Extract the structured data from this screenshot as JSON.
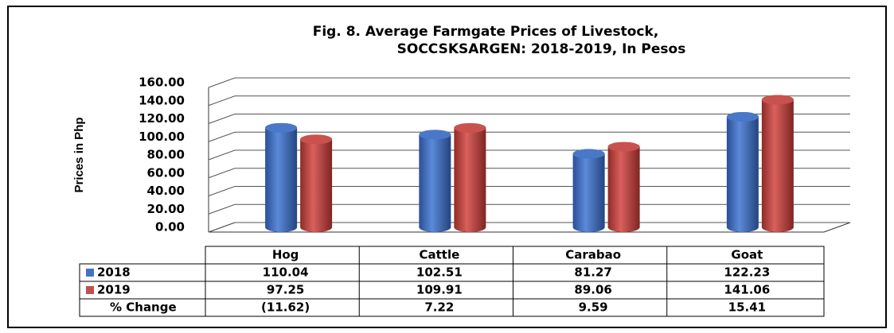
{
  "chart_data": {
    "type": "bar3d",
    "title": [
      "Fig. 8. Average Farmgate Prices of Livestock,",
      "SOCCSKSARGEN: 2018-2019, In Pesos"
    ],
    "y_label": "Prices in Php",
    "categories": [
      "Hog",
      "Cattle",
      "Carabao",
      "Goat"
    ],
    "series": [
      {
        "name": "2018",
        "color": "#4472c4",
        "values": [
          110.04,
          102.51,
          81.27,
          122.23
        ]
      },
      {
        "name": "2019",
        "color": "#c0504d",
        "values": [
          97.25,
          109.91,
          89.06,
          141.06
        ]
      }
    ],
    "pct_change": {
      "name": "% Change",
      "values": [
        -11.62,
        7.22,
        9.59,
        15.41
      ],
      "value_labels": [
        "(11.62)",
        "7.22",
        "9.59",
        "15.41"
      ]
    },
    "ylim": [
      0,
      160
    ],
    "yticks": [
      {
        "value": 0,
        "label": "0.00"
      },
      {
        "value": 20,
        "label": "20.00"
      },
      {
        "value": 40,
        "label": "40.00"
      },
      {
        "value": 60,
        "label": "60.00"
      },
      {
        "value": 80,
        "label": "80.00"
      },
      {
        "value": 100,
        "label": "100.00"
      },
      {
        "value": 120,
        "label": "120.00"
      },
      {
        "value": 140,
        "label": "140.00"
      },
      {
        "value": 160,
        "label": "160.00"
      }
    ],
    "grid": true
  }
}
